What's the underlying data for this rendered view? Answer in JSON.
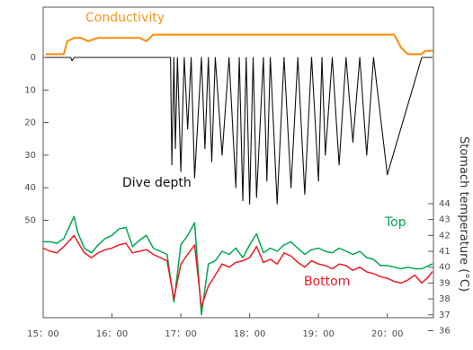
{
  "chart_data": {
    "type": "line",
    "title": "",
    "x_axis": {
      "ticks": [
        "15：00",
        "16：00",
        "17：00",
        "18：00",
        "19：00",
        "20：00"
      ]
    },
    "left_axis": {
      "label": "",
      "ticks": [
        0,
        10,
        20,
        30,
        40,
        50
      ],
      "reversed": true
    },
    "right_axis": {
      "label": "Stomach temperature (°C)",
      "ticks": [
        44,
        43,
        42,
        41,
        40,
        39,
        38,
        37,
        36
      ],
      "range": [
        36,
        45
      ]
    },
    "grid": false,
    "labels": {
      "conductivity": "Conductivity",
      "depth": "Dive depth",
      "top": "Top",
      "bottom": "Bottom"
    },
    "colors": {
      "conductivity": "#f7941d",
      "depth": "#111111",
      "top": "#00a651",
      "bottom": "#ed1c24",
      "frame": "#555555"
    },
    "series": [
      {
        "name": "Conductivity",
        "axis": "left",
        "x": [
          15.05,
          15.15,
          15.25,
          15.3,
          15.35,
          15.45,
          15.55,
          15.65,
          15.8,
          16.0,
          16.2,
          16.4,
          16.5,
          16.6,
          16.85,
          17.0,
          17.2,
          17.4,
          17.6,
          17.8,
          18.0,
          18.2,
          18.4,
          18.6,
          18.8,
          19.0,
          19.2,
          19.4,
          19.6,
          19.8,
          20.0,
          20.1,
          20.2,
          20.3,
          20.4,
          20.5,
          20.55,
          20.6,
          20.65
        ],
        "y": [
          -1,
          -1,
          -1,
          -1,
          -5,
          -6,
          -6,
          -5,
          -6,
          -6,
          -6,
          -6,
          -5,
          -7,
          -7,
          -7,
          -7,
          -7,
          -7,
          -7,
          -7,
          -7,
          -7,
          -7,
          -7,
          -7,
          -7,
          -7,
          -7,
          -7,
          -7,
          -7,
          -3,
          -1,
          -1,
          -1,
          -2,
          -2,
          -2
        ]
      },
      {
        "name": "Dive depth",
        "axis": "left",
        "x": [
          15.05,
          15.2,
          15.3,
          15.35,
          15.4,
          15.42,
          15.45,
          15.5,
          16.5,
          16.85,
          16.87,
          16.9,
          16.92,
          16.95,
          17.0,
          17.05,
          17.1,
          17.15,
          17.2,
          17.3,
          17.35,
          17.4,
          17.45,
          17.5,
          17.6,
          17.7,
          17.8,
          17.85,
          17.9,
          17.95,
          18.0,
          18.05,
          18.1,
          18.2,
          18.25,
          18.3,
          18.4,
          18.5,
          18.6,
          18.7,
          18.8,
          18.9,
          19.0,
          19.05,
          19.1,
          19.2,
          19.3,
          19.4,
          19.5,
          19.6,
          19.7,
          19.8,
          20.0,
          20.5,
          20.65
        ],
        "y": [
          0,
          0,
          0,
          0,
          0,
          1,
          0,
          0,
          0,
          0,
          33,
          0,
          28,
          0,
          35,
          0,
          22,
          0,
          37,
          0,
          28,
          0,
          32,
          0,
          30,
          0,
          40,
          0,
          44,
          0,
          45,
          0,
          43,
          0,
          38,
          0,
          45,
          0,
          40,
          0,
          42,
          0,
          38,
          0,
          30,
          0,
          33,
          0,
          26,
          0,
          30,
          0,
          36,
          0,
          0
        ]
      },
      {
        "name": "Top",
        "axis": "right",
        "x": [
          15.0,
          15.1,
          15.2,
          15.3,
          15.45,
          15.5,
          15.6,
          15.7,
          15.8,
          15.9,
          16.0,
          16.1,
          16.2,
          16.3,
          16.4,
          16.5,
          16.6,
          16.8,
          16.9,
          17.0,
          17.1,
          17.2,
          17.3,
          17.4,
          17.5,
          17.6,
          17.7,
          17.8,
          17.9,
          18.0,
          18.1,
          18.2,
          18.3,
          18.4,
          18.5,
          18.6,
          18.7,
          18.8,
          18.9,
          19.0,
          19.1,
          19.2,
          19.3,
          19.4,
          19.5,
          19.6,
          19.7,
          19.8,
          19.9,
          20.0,
          20.1,
          20.2,
          20.3,
          20.4,
          20.5,
          20.6,
          20.65
        ],
        "y": [
          41.6,
          41.6,
          41.5,
          41.8,
          43.2,
          42.2,
          41.2,
          40.9,
          41.4,
          41.8,
          42.0,
          42.4,
          42.5,
          41.3,
          41.7,
          42.0,
          41.2,
          40.8,
          37.8,
          41.4,
          42.0,
          42.8,
          37.0,
          40.2,
          40.4,
          41.0,
          40.8,
          41.2,
          40.6,
          41.4,
          42.1,
          40.9,
          41.2,
          41.0,
          41.4,
          41.6,
          41.2,
          40.8,
          41.1,
          41.2,
          41.0,
          40.9,
          41.2,
          41.0,
          40.8,
          41.0,
          40.6,
          40.5,
          40.1,
          40.1,
          40.0,
          39.9,
          40.0,
          39.9,
          39.9,
          40.1,
          40.2
        ]
      },
      {
        "name": "Bottom",
        "axis": "right",
        "x": [
          15.0,
          15.1,
          15.2,
          15.3,
          15.45,
          15.5,
          15.6,
          15.7,
          15.8,
          15.9,
          16.0,
          16.1,
          16.2,
          16.3,
          16.4,
          16.5,
          16.6,
          16.8,
          16.9,
          17.0,
          17.1,
          17.2,
          17.3,
          17.4,
          17.5,
          17.6,
          17.7,
          17.8,
          17.9,
          18.0,
          18.1,
          18.2,
          18.3,
          18.4,
          18.5,
          18.6,
          18.7,
          18.8,
          18.9,
          19.0,
          19.1,
          19.2,
          19.3,
          19.4,
          19.5,
          19.6,
          19.7,
          19.8,
          19.9,
          20.0,
          20.1,
          20.2,
          20.3,
          20.4,
          20.5,
          20.6,
          20.65
        ],
        "y": [
          41.2,
          41.0,
          40.9,
          41.3,
          42.0,
          41.6,
          40.9,
          40.6,
          40.9,
          41.1,
          41.2,
          41.4,
          41.5,
          40.9,
          41.0,
          41.1,
          40.8,
          40.4,
          38.0,
          40.2,
          40.8,
          41.4,
          37.5,
          38.8,
          39.5,
          40.2,
          40.0,
          40.3,
          40.4,
          40.6,
          41.3,
          40.3,
          40.5,
          40.2,
          40.9,
          40.7,
          40.3,
          40.0,
          40.4,
          40.2,
          40.1,
          39.9,
          40.2,
          40.1,
          39.8,
          40.0,
          39.7,
          39.6,
          39.4,
          39.3,
          39.1,
          39.0,
          39.2,
          39.5,
          39.0,
          39.4,
          39.7
        ]
      }
    ]
  }
}
